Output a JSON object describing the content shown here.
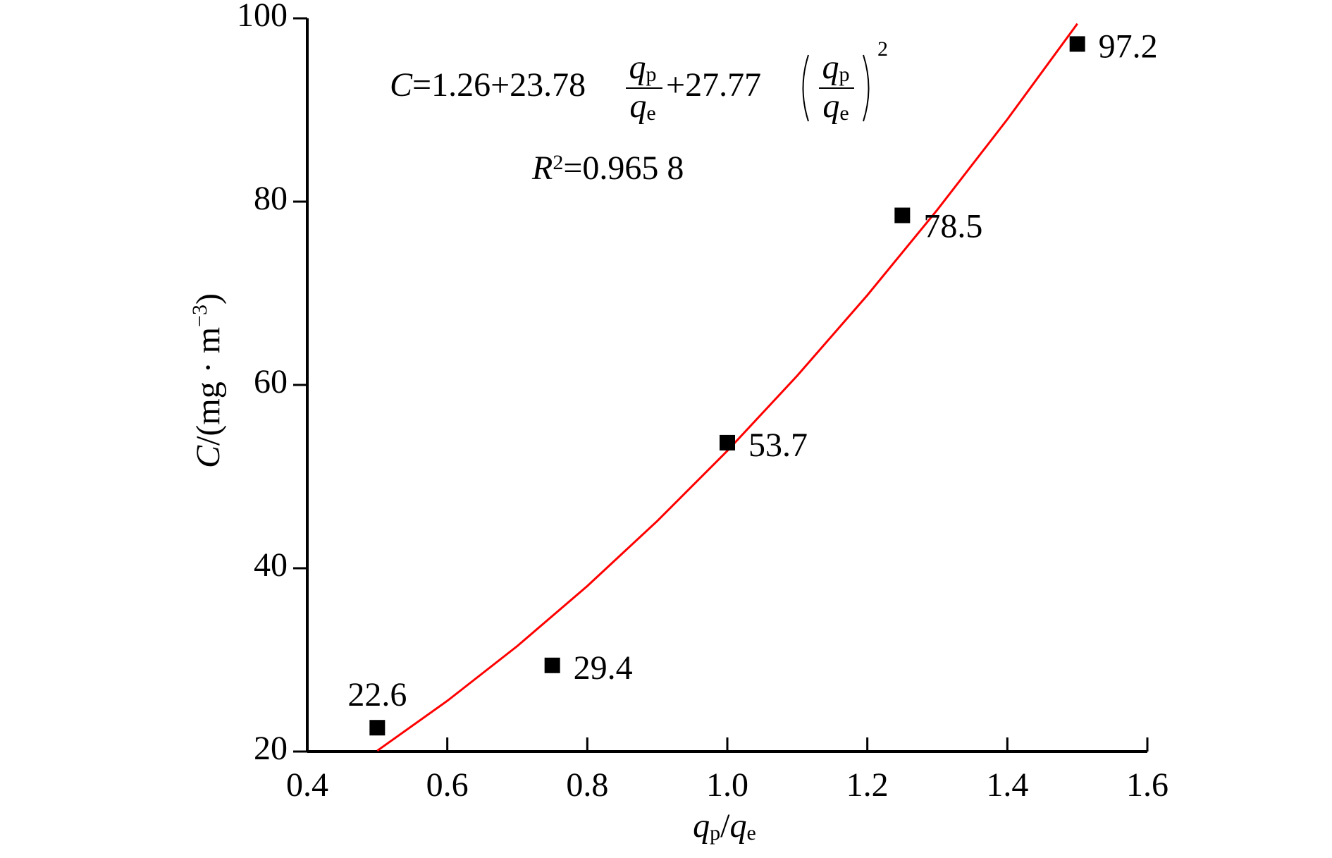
{
  "chart_data": {
    "type": "scatter",
    "x": [
      0.5,
      0.75,
      1.0,
      1.25,
      1.5
    ],
    "values": [
      22.6,
      29.4,
      53.7,
      78.5,
      97.2
    ],
    "color": "#000000",
    "fit": {
      "x": [
        0.5,
        0.6,
        0.7,
        0.8,
        0.9,
        1.0,
        1.1,
        1.2,
        1.3,
        1.4,
        1.5
      ],
      "values": [
        20.09,
        25.53,
        31.51,
        38.06,
        45.16,
        52.81,
        61.02,
        69.79,
        79.11,
        88.98,
        99.41
      ],
      "color": "#ff0000"
    },
    "xlim": [
      0.4,
      1.6
    ],
    "xticks": [
      0.4,
      0.6,
      0.8,
      {
        "value": 1.0,
        "label": "1.0"
      },
      1.2,
      1.4,
      1.6
    ],
    "ylim": [
      20,
      100
    ],
    "yticks": [
      20,
      40,
      60,
      80,
      100
    ],
    "x_label": {
      "q1": "q",
      "sub1": "p",
      "slash": "/",
      "q2": "q",
      "sub2": "e"
    },
    "y_label": {
      "c": "C",
      "unit": "/(mg · m",
      "exp": "−3",
      "close": ")"
    },
    "equation": {
      "lead": "C",
      "a": "=1.26+23.78",
      "num": "q",
      "num_sub": "p",
      "den": "q",
      "den_sub": "e",
      "b": "+27.77",
      "exp": "2"
    },
    "r2": {
      "lead": "R",
      "sup": "2",
      "rest": "=0.965 8"
    }
  }
}
